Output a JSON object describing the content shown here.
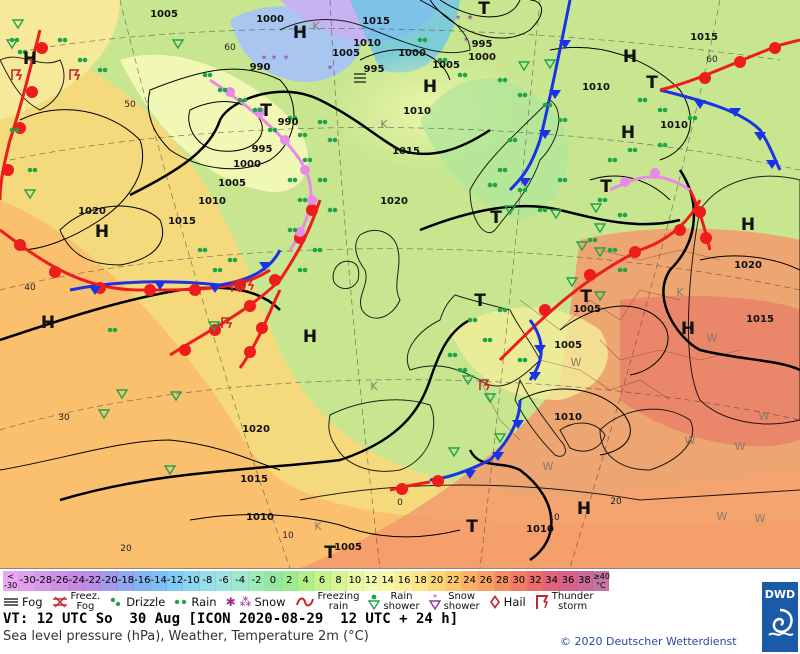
{
  "map": {
    "pressure_centers": [
      {
        "label": "H"
      },
      {
        "label": "H"
      },
      {
        "label": "H"
      },
      {
        "label": "H"
      },
      {
        "label": "H"
      },
      {
        "label": "H"
      },
      {
        "label": "H"
      },
      {
        "label": "H"
      },
      {
        "label": "H"
      },
      {
        "label": "H"
      },
      {
        "label": "H"
      },
      {
        "label": "T"
      },
      {
        "label": "T"
      },
      {
        "label": "T"
      },
      {
        "label": "T"
      },
      {
        "label": "T"
      },
      {
        "label": "T"
      },
      {
        "label": "T"
      },
      {
        "label": "T"
      },
      {
        "label": "T"
      }
    ],
    "isobar_labels": [
      "1005",
      "1000",
      "1015",
      "1005",
      "990",
      "995",
      "1000",
      "1010",
      "1005",
      "995",
      "1000",
      "990",
      "1005",
      "1010",
      "1015",
      "1020",
      "1015",
      "1010",
      "1010",
      "1015",
      "1005",
      "1020",
      "1010",
      "1020",
      "1015",
      "1010",
      "1005",
      "1010",
      "1005",
      "995",
      "1000",
      "1010",
      "1015",
      "1020"
    ],
    "coast_labels": [
      "60",
      "50",
      "40",
      "30",
      "20",
      "10",
      "0",
      "10",
      "20",
      "60"
    ],
    "weak_labels": [
      "K",
      "K",
      "K",
      "K",
      "K",
      "W",
      "W",
      "W",
      "W",
      "W",
      "W",
      "W",
      "W"
    ]
  },
  "scale": {
    "cells": [
      {
        "label": "<\n-30",
        "color": "#e6a8f0"
      },
      {
        "label": "-30",
        "color": "#e0a0ec"
      },
      {
        "label": "-28",
        "color": "#d898ea"
      },
      {
        "label": "-26",
        "color": "#cf90e6"
      },
      {
        "label": "-24",
        "color": "#c689e4"
      },
      {
        "label": "-22",
        "color": "#b98fe8"
      },
      {
        "label": "-20",
        "color": "#a29bea"
      },
      {
        "label": "-18",
        "color": "#94a7ee"
      },
      {
        "label": "-16",
        "color": "#86b3f2"
      },
      {
        "label": "-14",
        "color": "#7fbff4"
      },
      {
        "label": "-12",
        "color": "#82cbf4"
      },
      {
        "label": "-10",
        "color": "#8ed5f0"
      },
      {
        "label": "-8",
        "color": "#98ddea"
      },
      {
        "label": "-6",
        "color": "#9ee4de"
      },
      {
        "label": "-4",
        "color": "#9ee8cd"
      },
      {
        "label": "-2",
        "color": "#9eebb8"
      },
      {
        "label": "0",
        "color": "#96e8a0"
      },
      {
        "label": "2",
        "color": "#9fea8f"
      },
      {
        "label": "4",
        "color": "#b2ee8a"
      },
      {
        "label": "6",
        "color": "#c6f28c"
      },
      {
        "label": "8",
        "color": "#d8f594"
      },
      {
        "label": "10",
        "color": "#e8f8a4"
      },
      {
        "label": "12",
        "color": "#f2fab2"
      },
      {
        "label": "14",
        "color": "#f8f6a8"
      },
      {
        "label": "16",
        "color": "#fbee98"
      },
      {
        "label": "18",
        "color": "#fde486"
      },
      {
        "label": "20",
        "color": "#fdd676"
      },
      {
        "label": "22",
        "color": "#fcc66c"
      },
      {
        "label": "24",
        "color": "#fbb266"
      },
      {
        "label": "26",
        "color": "#f9a064"
      },
      {
        "label": "28",
        "color": "#f68e64"
      },
      {
        "label": "30",
        "color": "#f27c66"
      },
      {
        "label": "32",
        "color": "#ea6c6c"
      },
      {
        "label": "34",
        "color": "#e0647a"
      },
      {
        "label": "36",
        "color": "#d56488"
      },
      {
        "label": "38",
        "color": "#cc6a96"
      },
      {
        "label": "≥40\n°C",
        "color": "#c676a4"
      }
    ]
  },
  "legend": {
    "fog": "Fog",
    "freezing_fog": "Freez.\nFog",
    "drizzle": "Drizzle",
    "rain": "Rain",
    "snow": "Snow",
    "freezing_rain": "Freezing\nrain",
    "rain_shower": "Rain\nshower",
    "snow_shower": "Snow\nshower",
    "hail": "Hail",
    "thunderstorm": "Thunder\nstorm"
  },
  "footer": {
    "valid_time": "VT: 12 UTC So  30 Aug [ICON 2020-08-29  12 UTC + 24 h]",
    "description": "Sea level pressure (hPa), Weather, Temperature 2m (°C)",
    "copyright": "© 2020 Deutscher Wetterdienst",
    "logo": "DWD"
  },
  "colors": {
    "warm_front": "#ee1c1c",
    "cold_front": "#1a33e6",
    "occluded_front": "#e98ae8",
    "isobar": "#000000",
    "weather_symbol": "#1fa44a"
  }
}
